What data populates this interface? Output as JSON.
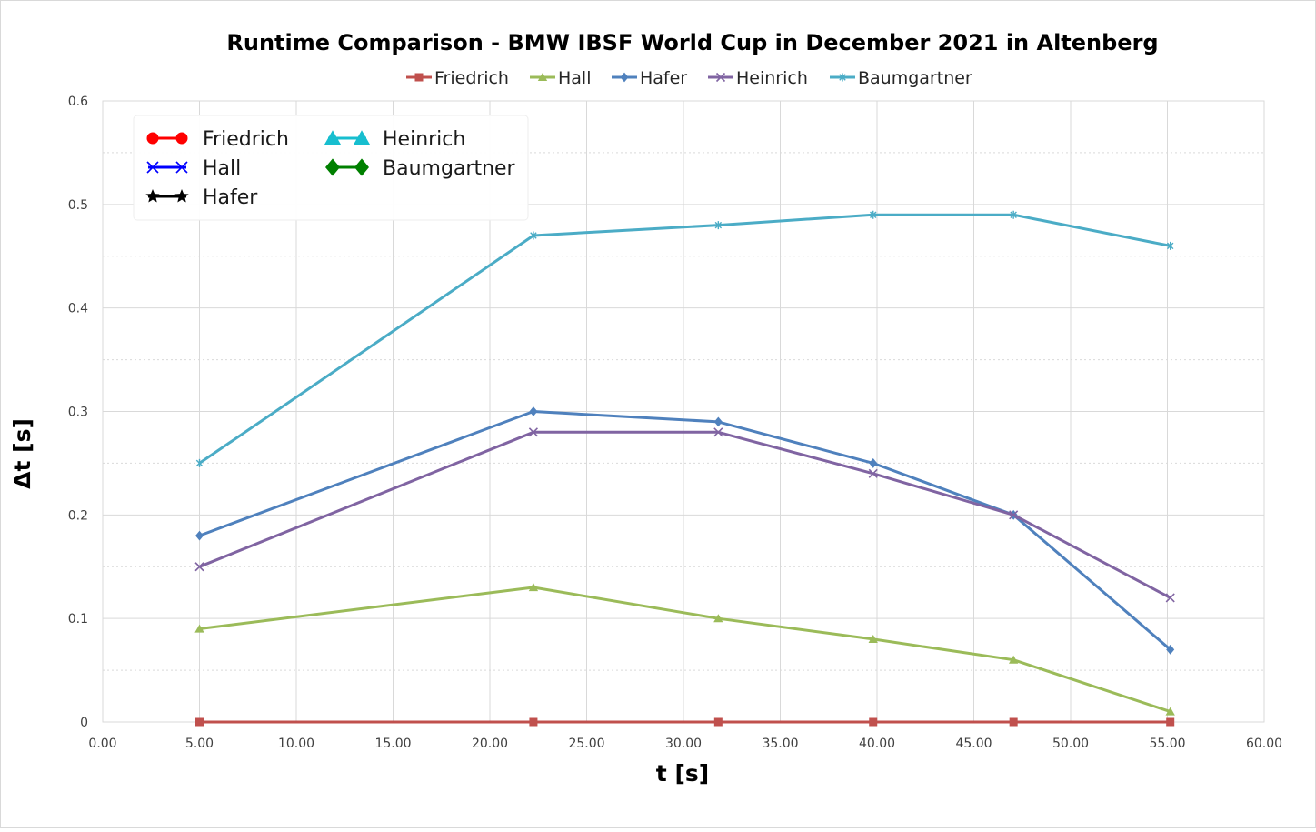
{
  "chart_data": {
    "type": "line",
    "title": "Runtime Comparison - BMW IBSF World Cup in December 2021 in Altenberg",
    "xlabel": "t [s]",
    "ylabel": "Δt [s]",
    "xlim": [
      0,
      60
    ],
    "ylim": [
      0,
      0.6
    ],
    "x_ticks": [
      "0.00",
      "5.00",
      "10.00",
      "15.00",
      "20.00",
      "25.00",
      "30.00",
      "35.00",
      "40.00",
      "45.00",
      "50.00",
      "55.00",
      "60.00"
    ],
    "y_ticks": [
      "0",
      "0.1",
      "0.2",
      "0.3",
      "0.4",
      "0.5",
      "0.6"
    ],
    "grid": true,
    "legend_position": "top",
    "x": [
      5.0,
      22.25,
      31.8,
      39.8,
      47.05,
      55.15
    ],
    "series": [
      {
        "name": "Friedrich",
        "color": "#c0504d",
        "marker": "square",
        "values": [
          0,
          0,
          0,
          0,
          0,
          0
        ]
      },
      {
        "name": "Hall",
        "color": "#9bbb59",
        "marker": "triangle",
        "values": [
          0.09,
          0.13,
          0.1,
          0.08,
          0.06,
          0.01
        ]
      },
      {
        "name": "Hafer",
        "color": "#4f81bd",
        "marker": "diamond",
        "values": [
          0.18,
          0.3,
          0.29,
          0.25,
          0.2,
          0.07
        ]
      },
      {
        "name": "Heinrich",
        "color": "#8064a2",
        "marker": "x",
        "values": [
          0.15,
          0.28,
          0.28,
          0.24,
          0.2,
          0.12
        ]
      },
      {
        "name": "Baumgartner",
        "color": "#4bacc6",
        "marker": "star",
        "values": [
          0.25,
          0.47,
          0.48,
          0.49,
          0.49,
          0.46
        ]
      }
    ],
    "inset_legend": [
      {
        "name": "Friedrich",
        "color": "#ff0000",
        "marker": "circle"
      },
      {
        "name": "Hall",
        "color": "#0000ff",
        "marker": "x"
      },
      {
        "name": "Hafer",
        "color": "#000000",
        "marker": "star"
      },
      {
        "name": "Heinrich",
        "color": "#17becf",
        "marker": "triangle"
      },
      {
        "name": "Baumgartner",
        "color": "#008000",
        "marker": "diamond"
      }
    ]
  }
}
